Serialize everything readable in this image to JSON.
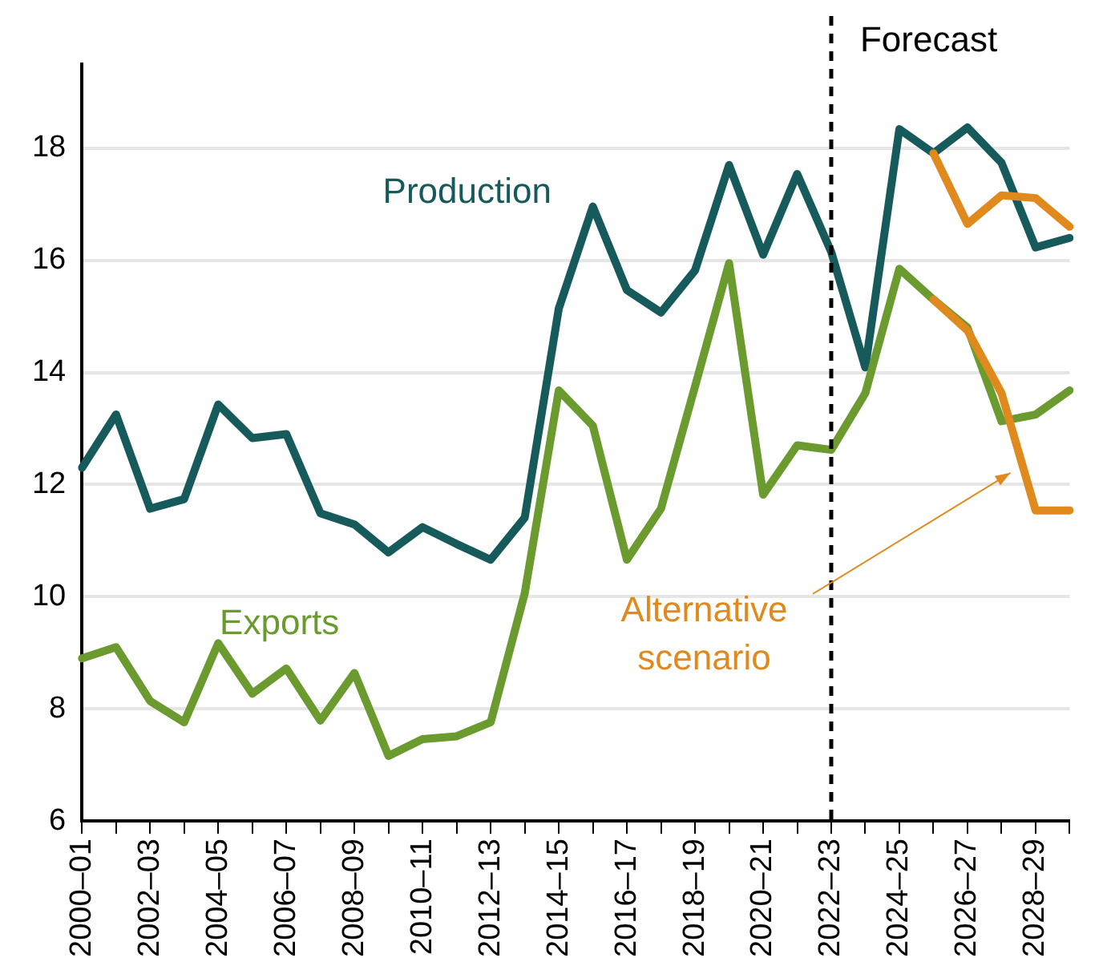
{
  "chart_data": {
    "type": "line",
    "categories": [
      "2000–01",
      null,
      "2002–03",
      null,
      "2004–05",
      null,
      "2006–07",
      null,
      "2008–09",
      null,
      "2010–11",
      null,
      "2012–13",
      null,
      "2014–15",
      null,
      "2016–17",
      null,
      "2018–19",
      null,
      "2020–21",
      null,
      "2022–23",
      null,
      "2024–25",
      null,
      "2026–27",
      null,
      "2028–29",
      null
    ],
    "series": [
      {
        "name": "Production",
        "color": "#175a5c",
        "values": [
          12.3,
          13.25,
          11.57,
          11.74,
          13.43,
          12.83,
          12.9,
          11.49,
          11.29,
          10.79,
          11.24,
          10.94,
          10.66,
          11.41,
          15.14,
          16.96,
          15.47,
          15.07,
          15.82,
          17.7,
          16.1,
          17.54,
          16.15,
          14.09,
          18.34,
          17.91,
          18.37,
          17.74,
          16.23,
          16.4
        ]
      },
      {
        "name": "Exports",
        "color": "#6b9a2e",
        "values": [
          8.9,
          9.1,
          8.14,
          7.76,
          9.17,
          8.27,
          8.72,
          7.79,
          8.64,
          7.16,
          7.46,
          7.51,
          7.76,
          10.06,
          13.68,
          13.05,
          10.66,
          11.57,
          13.75,
          15.95,
          11.82,
          12.7,
          12.62,
          13.63,
          15.85,
          15.3,
          14.8,
          13.13,
          13.25,
          13.68
        ]
      },
      {
        "color": "#e08a1e",
        "values": [
          null,
          null,
          null,
          null,
          null,
          null,
          null,
          null,
          null,
          null,
          null,
          null,
          null,
          null,
          null,
          null,
          null,
          null,
          null,
          null,
          null,
          null,
          null,
          null,
          null,
          17.91,
          16.65,
          17.16,
          17.11,
          16.6
        ]
      },
      {
        "color": "#e08a1e",
        "values": [
          null,
          null,
          null,
          null,
          null,
          null,
          null,
          null,
          null,
          null,
          null,
          null,
          null,
          null,
          null,
          null,
          null,
          null,
          null,
          null,
          null,
          null,
          null,
          null,
          null,
          15.3,
          14.75,
          13.63,
          11.54,
          11.54
        ]
      }
    ],
    "ylim": [
      6,
      19.5
    ],
    "yticks": [
      6,
      8,
      10,
      12,
      14,
      16,
      18
    ],
    "grid": "y",
    "legend": false,
    "marker": "none",
    "line_style": "solid",
    "ref_lines": [
      {
        "axis": "x",
        "value": "2022–23",
        "label": "Forecast",
        "color": "#000000",
        "line_style": "dashed"
      }
    ],
    "annotations": [
      "Alternative scenario"
    ]
  }
}
